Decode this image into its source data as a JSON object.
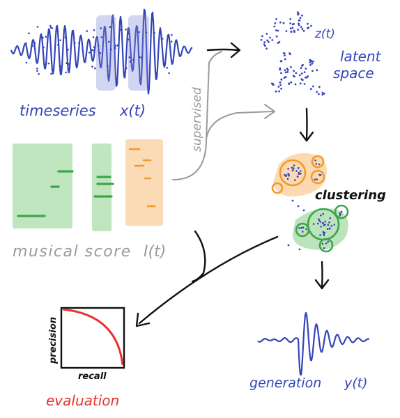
{
  "labels": {
    "timeseries": "timeseries",
    "x_of_t": "x(t)",
    "z_of_t": "z(t)",
    "latent_line1": "latent",
    "latent_line2": "space",
    "supervised": "supervised",
    "clustering": "clustering",
    "musical_score": "musical score",
    "score_symbol": "I(t)",
    "precision": "precision",
    "recall": "recall",
    "evaluation": "evaluation",
    "generation": "generation",
    "y_of_t": "y(t)"
  },
  "colors": {
    "blue": "#3444b8",
    "blue_fill": "#7e88d6",
    "gray": "#9a9a9a",
    "green": "#3aa64a",
    "green_fill": "#b9e2b8",
    "orange": "#f29a2a",
    "orange_fill": "#fbd7ad",
    "red": "#e8322c",
    "black": "#111111"
  }
}
